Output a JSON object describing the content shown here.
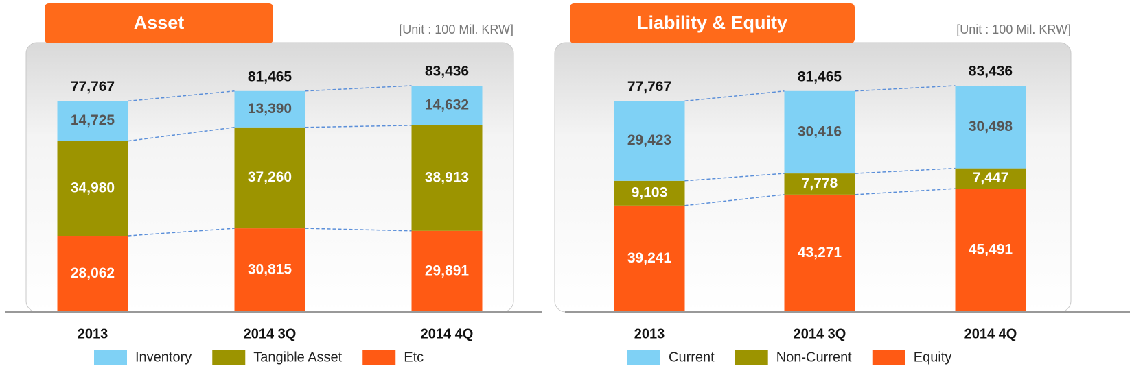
{
  "chart_data": [
    {
      "type": "stacked_bar",
      "title": "Asset",
      "subtitle": "[Unit : 100 Mil. KRW]",
      "categories": [
        "2013",
        "2014 3Q",
        "2014 4Q"
      ],
      "totals": [
        77767,
        81465,
        83436
      ],
      "total_labels": [
        "77,767",
        "81,465",
        "83,436"
      ],
      "series": [
        {
          "name": "Inventory",
          "color": "#7fd1f5",
          "values": [
            14725,
            13390,
            14632
          ],
          "value_labels": [
            "14,725",
            "13,390",
            "14,632"
          ]
        },
        {
          "name": "Tangible Asset",
          "color": "#9c9400",
          "values": [
            34980,
            37260,
            38913
          ],
          "value_labels": [
            "34,980",
            "37,260",
            "38,913"
          ]
        },
        {
          "name": "Etc",
          "color": "#ff5a14",
          "values": [
            28062,
            30815,
            29891
          ],
          "value_labels": [
            "28,062",
            "30,815",
            "29,891"
          ]
        }
      ]
    },
    {
      "type": "stacked_bar",
      "title": "Liability & Equity",
      "subtitle": "[Unit : 100 Mil. KRW]",
      "categories": [
        "2013",
        "2014 3Q",
        "2014 4Q"
      ],
      "totals": [
        77767,
        81465,
        83436
      ],
      "total_labels": [
        "77,767",
        "81,465",
        "83,436"
      ],
      "series": [
        {
          "name": "Current",
          "color": "#7fd1f5",
          "values": [
            29423,
            30416,
            30498
          ],
          "value_labels": [
            "29,423",
            "30,416",
            "30,498"
          ]
        },
        {
          "name": "Non-Current",
          "color": "#9c9400",
          "values": [
            9103,
            7778,
            7447
          ],
          "value_labels": [
            "9,103",
            "7,778",
            "7,447"
          ]
        },
        {
          "name": "Equity",
          "color": "#ff5a14",
          "values": [
            39241,
            43271,
            45491
          ],
          "value_labels": [
            "39,241",
            "43,271",
            "45,491"
          ]
        }
      ]
    }
  ]
}
